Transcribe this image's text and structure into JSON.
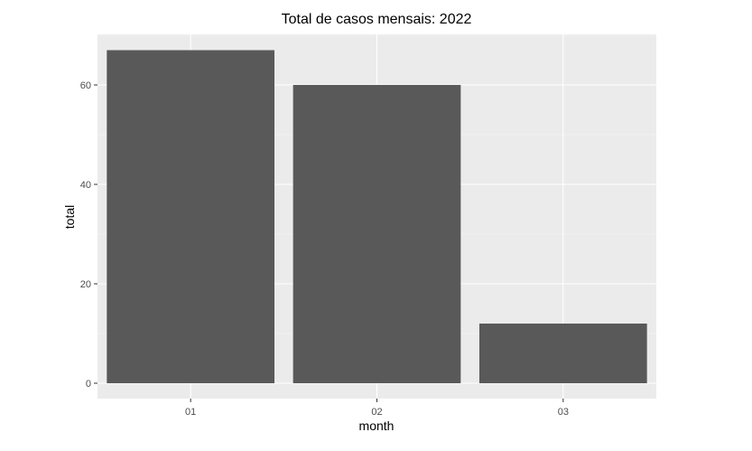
{
  "chart_data": {
    "type": "bar",
    "title": "Total de casos mensais: 2022",
    "xlabel": "month",
    "ylabel": "total",
    "categories": [
      "01",
      "02",
      "03"
    ],
    "values": [
      67,
      60,
      12
    ],
    "ylim": [
      0,
      70
    ],
    "yticks": [
      0,
      20,
      40,
      60
    ],
    "grid": true,
    "legend": "none",
    "colors": {
      "bar": "#595959",
      "panel": "#ebebeb",
      "grid_major": "#ffffff",
      "grid_minor": "#f5f5f5",
      "tick": "#333333"
    }
  }
}
